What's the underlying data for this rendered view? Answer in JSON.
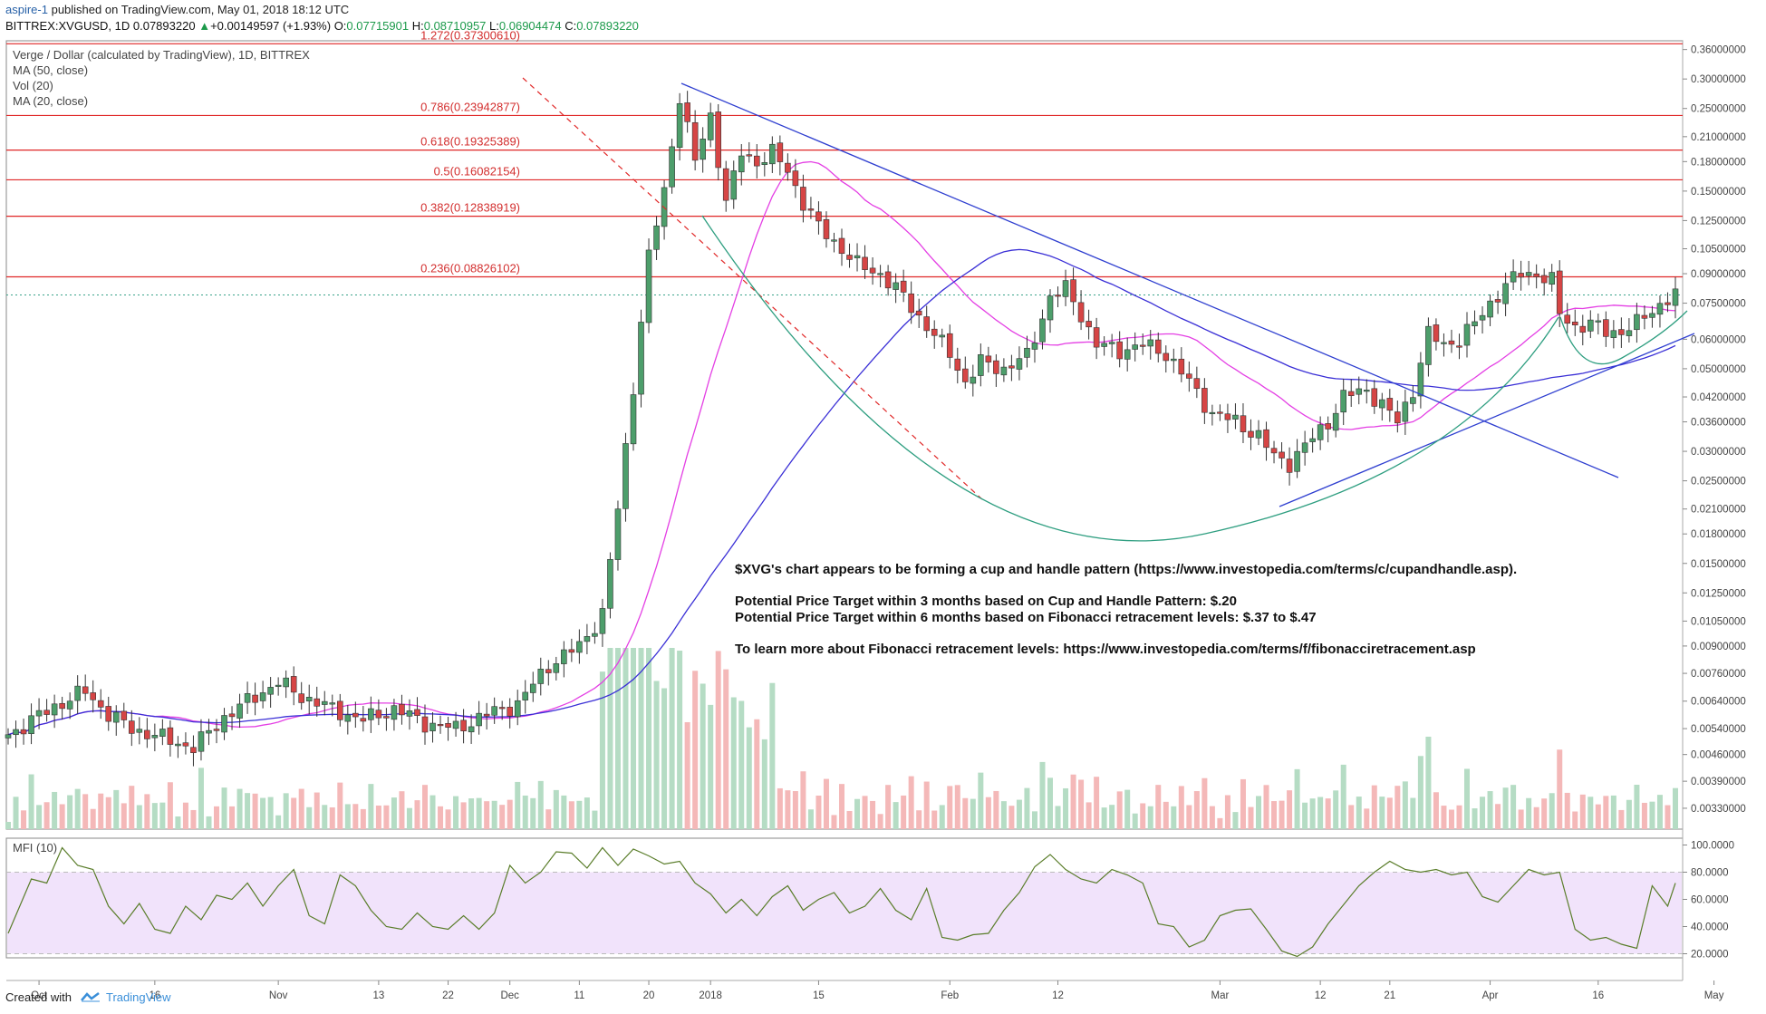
{
  "header": {
    "user": "aspire-1",
    "published": "published on TradingView.com, May 01, 2018 18:12 UTC",
    "symbol": "BITTREX:XVGUSD, 1D",
    "last": "0.07893220",
    "arrow": "▲",
    "change": "+0.00149597 (+1.93%)",
    "o_label": "O:",
    "o_val": "0.07715901",
    "h_label": "H:",
    "h_val": "0.08710957",
    "l_label": "L:",
    "l_val": "0.06904474",
    "c_label": "C:",
    "c_val": "0.07893220"
  },
  "legend": {
    "title": "Verge / Dollar (calculated by TradingView), 1D, BITTREX",
    "ma50": "MA (50, close)",
    "vol": "Vol (20)",
    "ma20": "MA (20, close)"
  },
  "mfi_label": "MFI (10)",
  "annotation": {
    "line1": "$XVG's chart appears to be forming a cup and handle pattern (https://www.investopedia.com/terms/c/cupandhandle.asp).",
    "line2": "Potential Price Target within 3 months based on Cup and Handle Pattern: $.20",
    "line3": "Potential Price Target within 6 months based on Fibonacci retracement levels: $.37 to $.47",
    "line4": "To learn more about Fibonacci retracement levels: https://www.investopedia.com/terms/f/fibonacciretracement.asp"
  },
  "footer": {
    "created": "Created with",
    "brand": "TradingView"
  },
  "colors": {
    "up": "#4d9e6b",
    "down": "#d64545",
    "ma50": "#3a2fd6",
    "ma20": "#e43fe4",
    "fib": "#e02727",
    "trend": "#2f3fd0",
    "cup": "#2e9e80",
    "mfi_line": "#5a7d2a",
    "mfi_band": "#f1e3fb"
  },
  "chart_data": {
    "type": "candlestick",
    "price_scale": "log",
    "ylim": [
      0.0029,
      0.38
    ],
    "y_ticks": [
      "0.36000000",
      "0.30000000",
      "0.25000000",
      "0.21000000",
      "0.18000000",
      "0.15000000",
      "0.12500000",
      "0.10500000",
      "0.09000000",
      "0.07500000",
      "0.06000000",
      "0.05000000",
      "0.04200000",
      "0.03600000",
      "0.03000000",
      "0.02500000",
      "0.02100000",
      "0.01800000",
      "0.01500000",
      "0.01250000",
      "0.01050000",
      "0.00900000",
      "0.00760000",
      "0.00640000",
      "0.00540000",
      "0.00460000",
      "0.00390000",
      "0.00330000"
    ],
    "y_tick_values": [
      0.36,
      0.3,
      0.25,
      0.21,
      0.18,
      0.15,
      0.125,
      0.105,
      0.09,
      0.075,
      0.06,
      0.05,
      0.042,
      0.036,
      0.03,
      0.025,
      0.021,
      0.018,
      0.015,
      0.0125,
      0.0105,
      0.009,
      0.0076,
      0.0064,
      0.0054,
      0.0046,
      0.0039,
      0.0033
    ],
    "x_ticks": [
      "Oct",
      "16",
      "Nov",
      "13",
      "22",
      "Dec",
      "11",
      "20",
      "2018",
      "15",
      "Feb",
      "12",
      "Mar",
      "12",
      "21",
      "Apr",
      "16",
      "May"
    ],
    "x_tick_days": [
      4,
      19,
      35,
      48,
      57,
      65,
      74,
      83,
      91,
      105,
      122,
      136,
      157,
      170,
      179,
      192,
      206,
      221
    ],
    "last_price": 0.0789,
    "fibonacci": [
      {
        "label": "1.272(0.37300610)",
        "value": 0.3730061
      },
      {
        "label": "0.786(0.23942877)",
        "value": 0.23942877
      },
      {
        "label": "0.618(0.19325389)",
        "value": 0.19325389
      },
      {
        "label": "0.5(0.16082154)",
        "value": 0.16082154
      },
      {
        "label": "0.382(0.12838919)",
        "value": 0.12838919
      },
      {
        "label": "0.236(0.08826102)",
        "value": 0.08826102
      }
    ],
    "mfi_ticks": [
      "100.0000",
      "80.0000",
      "60.0000",
      "40.0000",
      "20.0000"
    ],
    "mfi_tick_values": [
      100,
      80,
      60,
      40,
      20
    ],
    "mfi_band": [
      20,
      80
    ],
    "anchors": [
      [
        0,
        0.0052
      ],
      [
        6,
        0.0062
      ],
      [
        10,
        0.0068
      ],
      [
        13,
        0.0059
      ],
      [
        16,
        0.0054
      ],
      [
        20,
        0.0051
      ],
      [
        24,
        0.0048
      ],
      [
        28,
        0.0058
      ],
      [
        32,
        0.0066
      ],
      [
        35,
        0.0072
      ],
      [
        38,
        0.0066
      ],
      [
        42,
        0.0061
      ],
      [
        46,
        0.0057
      ],
      [
        50,
        0.0061
      ],
      [
        54,
        0.0056
      ],
      [
        58,
        0.0054
      ],
      [
        62,
        0.0059
      ],
      [
        66,
        0.0063
      ],
      [
        70,
        0.008
      ],
      [
        74,
        0.009
      ],
      [
        77,
        0.011
      ],
      [
        79,
        0.021
      ],
      [
        81,
        0.045
      ],
      [
        83,
        0.1
      ],
      [
        85,
        0.15
      ],
      [
        87,
        0.27
      ],
      [
        89,
        0.18
      ],
      [
        91,
        0.24
      ],
      [
        93,
        0.14
      ],
      [
        95,
        0.19
      ],
      [
        97,
        0.18
      ],
      [
        99,
        0.19
      ],
      [
        101,
        0.17
      ],
      [
        103,
        0.14
      ],
      [
        105,
        0.12
      ],
      [
        108,
        0.105
      ],
      [
        110,
        0.095
      ],
      [
        113,
        0.09
      ],
      [
        116,
        0.078
      ],
      [
        119,
        0.065
      ],
      [
        122,
        0.055
      ],
      [
        124,
        0.046
      ],
      [
        126,
        0.052
      ],
      [
        129,
        0.05
      ],
      [
        132,
        0.054
      ],
      [
        135,
        0.078
      ],
      [
        137,
        0.082
      ],
      [
        139,
        0.07
      ],
      [
        141,
        0.058
      ],
      [
        144,
        0.056
      ],
      [
        147,
        0.058
      ],
      [
        150,
        0.055
      ],
      [
        153,
        0.046
      ],
      [
        156,
        0.038
      ],
      [
        159,
        0.036
      ],
      [
        162,
        0.033
      ],
      [
        164,
        0.029
      ],
      [
        166,
        0.028
      ],
      [
        168,
        0.031
      ],
      [
        171,
        0.036
      ],
      [
        173,
        0.042
      ],
      [
        176,
        0.044
      ],
      [
        178,
        0.04
      ],
      [
        180,
        0.036
      ],
      [
        182,
        0.044
      ],
      [
        184,
        0.062
      ],
      [
        186,
        0.058
      ],
      [
        188,
        0.06
      ],
      [
        190,
        0.066
      ],
      [
        192,
        0.075
      ],
      [
        194,
        0.084
      ],
      [
        196,
        0.09
      ],
      [
        198,
        0.09
      ],
      [
        200,
        0.086
      ],
      [
        201,
        0.07
      ],
      [
        203,
        0.065
      ],
      [
        205,
        0.066
      ],
      [
        207,
        0.063
      ],
      [
        209,
        0.063
      ],
      [
        211,
        0.066
      ],
      [
        213,
        0.072
      ],
      [
        215,
        0.077
      ],
      [
        216,
        0.079
      ]
    ],
    "mfi_anchors": [
      [
        0,
        35
      ],
      [
        3,
        75
      ],
      [
        5,
        72
      ],
      [
        7,
        98
      ],
      [
        9,
        85
      ],
      [
        11,
        82
      ],
      [
        13,
        55
      ],
      [
        15,
        42
      ],
      [
        17,
        57
      ],
      [
        19,
        38
      ],
      [
        21,
        35
      ],
      [
        23,
        55
      ],
      [
        25,
        45
      ],
      [
        27,
        63
      ],
      [
        29,
        60
      ],
      [
        31,
        72
      ],
      [
        33,
        55
      ],
      [
        35,
        70
      ],
      [
        37,
        82
      ],
      [
        39,
        48
      ],
      [
        41,
        42
      ],
      [
        43,
        78
      ],
      [
        45,
        70
      ],
      [
        47,
        52
      ],
      [
        49,
        40
      ],
      [
        51,
        38
      ],
      [
        53,
        50
      ],
      [
        55,
        40
      ],
      [
        57,
        38
      ],
      [
        59,
        48
      ],
      [
        61,
        38
      ],
      [
        63,
        50
      ],
      [
        65,
        85
      ],
      [
        67,
        72
      ],
      [
        69,
        80
      ],
      [
        71,
        95
      ],
      [
        73,
        94
      ],
      [
        75,
        83
      ],
      [
        77,
        98
      ],
      [
        79,
        85
      ],
      [
        81,
        97
      ],
      [
        83,
        92
      ],
      [
        85,
        86
      ],
      [
        87,
        88
      ],
      [
        89,
        72
      ],
      [
        91,
        64
      ],
      [
        93,
        50
      ],
      [
        95,
        60
      ],
      [
        97,
        48
      ],
      [
        99,
        62
      ],
      [
        101,
        70
      ],
      [
        103,
        52
      ],
      [
        105,
        60
      ],
      [
        107,
        65
      ],
      [
        109,
        50
      ],
      [
        111,
        55
      ],
      [
        113,
        68
      ],
      [
        115,
        52
      ],
      [
        117,
        45
      ],
      [
        119,
        68
      ],
      [
        121,
        32
      ],
      [
        123,
        30
      ],
      [
        125,
        34
      ],
      [
        127,
        35
      ],
      [
        129,
        52
      ],
      [
        131,
        65
      ],
      [
        133,
        84
      ],
      [
        135,
        93
      ],
      [
        137,
        82
      ],
      [
        139,
        75
      ],
      [
        141,
        72
      ],
      [
        143,
        82
      ],
      [
        145,
        78
      ],
      [
        147,
        72
      ],
      [
        149,
        42
      ],
      [
        151,
        40
      ],
      [
        153,
        25
      ],
      [
        155,
        30
      ],
      [
        157,
        48
      ],
      [
        159,
        52
      ],
      [
        161,
        53
      ],
      [
        163,
        38
      ],
      [
        165,
        22
      ],
      [
        167,
        18
      ],
      [
        169,
        25
      ],
      [
        171,
        42
      ],
      [
        173,
        56
      ],
      [
        175,
        70
      ],
      [
        177,
        80
      ],
      [
        179,
        88
      ],
      [
        181,
        82
      ],
      [
        183,
        80
      ],
      [
        185,
        82
      ],
      [
        187,
        78
      ],
      [
        189,
        80
      ],
      [
        191,
        62
      ],
      [
        193,
        58
      ],
      [
        195,
        70
      ],
      [
        197,
        82
      ],
      [
        199,
        78
      ],
      [
        201,
        80
      ],
      [
        203,
        38
      ],
      [
        205,
        30
      ],
      [
        207,
        32
      ],
      [
        209,
        27
      ],
      [
        211,
        24
      ],
      [
        213,
        70
      ],
      [
        215,
        55
      ],
      [
        216,
        72
      ]
    ]
  }
}
